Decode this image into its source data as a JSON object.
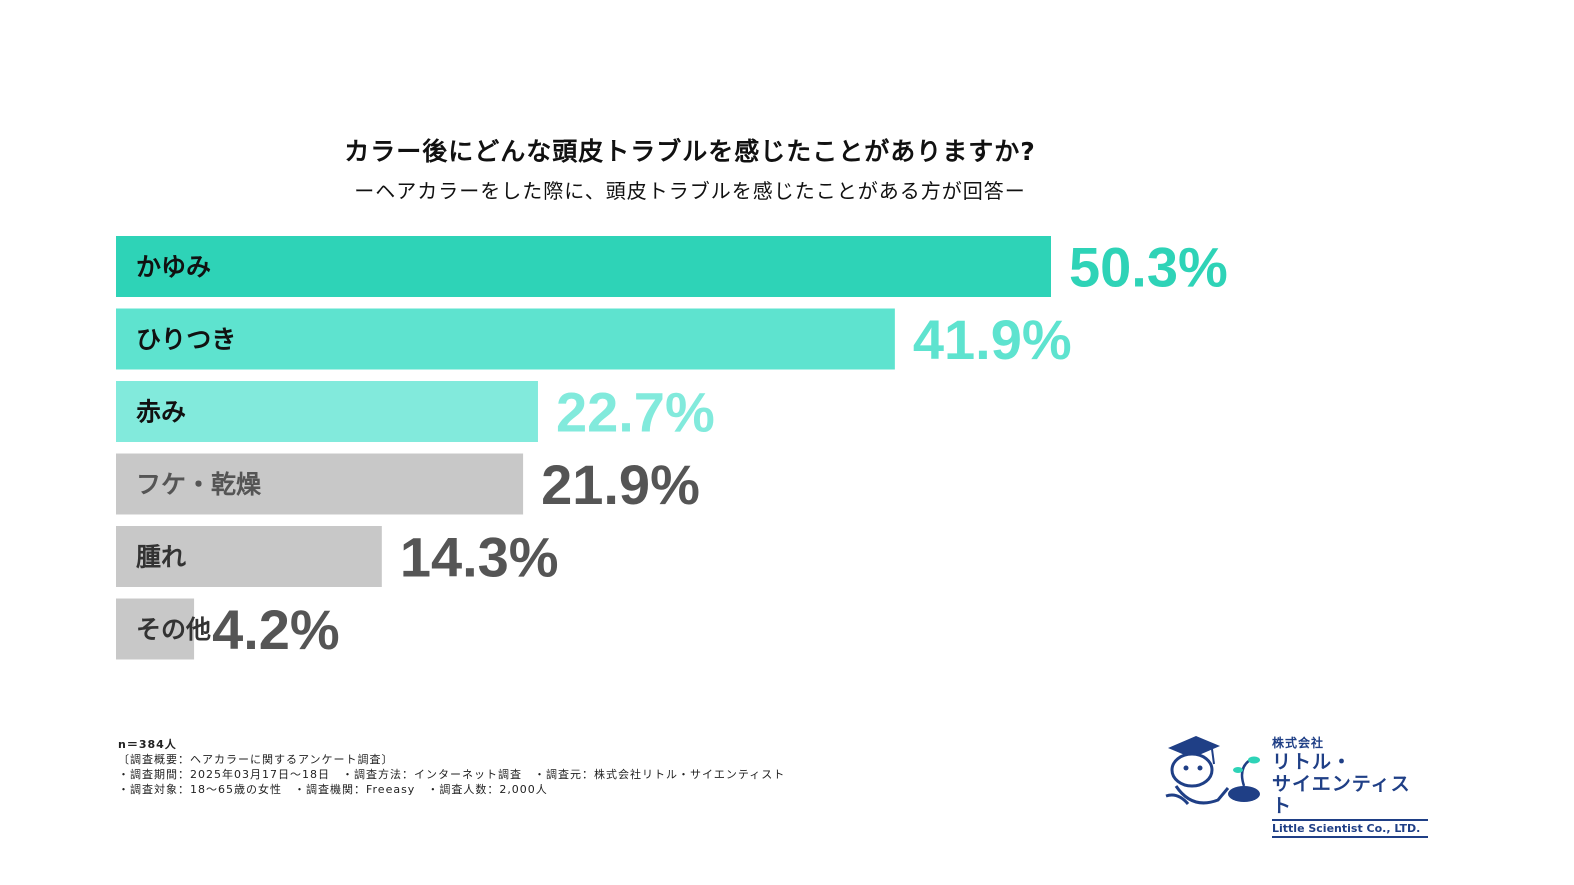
{
  "title": "カラー後にどんな頭皮トラブルを感じたことがありますか?",
  "subtitle": "ーヘアカラーをした際に、頭皮トラブルを感じたことがある方が回答ー",
  "chart_data": {
    "type": "bar",
    "orientation": "horizontal",
    "categories": [
      "かゆみ",
      "ひりつき",
      "赤み",
      "フケ・乾燥",
      "腫れ",
      "その他"
    ],
    "values": [
      50.3,
      41.9,
      22.7,
      21.9,
      14.3,
      4.2
    ],
    "value_labels": [
      "50.3%",
      "41.9%",
      "22.7%",
      "21.9%",
      "14.3%",
      "4.2%"
    ],
    "bar_colors": [
      "#2ed3b7",
      "#5ee3cf",
      "#82eadc",
      "#c8c8c8",
      "#c8c8c8",
      "#c8c8c8"
    ],
    "value_colors": [
      "#2ed3b7",
      "#5ee3cf",
      "#82eadc",
      "#555555",
      "#555555",
      "#555555"
    ],
    "label_colors": [
      "#111111",
      "#111111",
      "#111111",
      "#555555",
      "#333333",
      "#333333"
    ],
    "unit": "%"
  },
  "footnote": {
    "n": "n＝384人",
    "lines": [
      "〔調査概要：ヘアカラーに関するアンケート調査〕",
      "・調査期間：2025年03月17日〜18日　・調査方法：インターネット調査　・調査元：株式会社リトル・サイエンティスト",
      "・調査対象：18〜65歳の女性　・調査機関：Freeasy　・調査人数：2,000人"
    ]
  },
  "logo": {
    "company_prefix": "株式会社",
    "name_line1": "リトル・",
    "name_line2": "サイエンティスト",
    "english": "Little Scientist Co., LTD."
  }
}
